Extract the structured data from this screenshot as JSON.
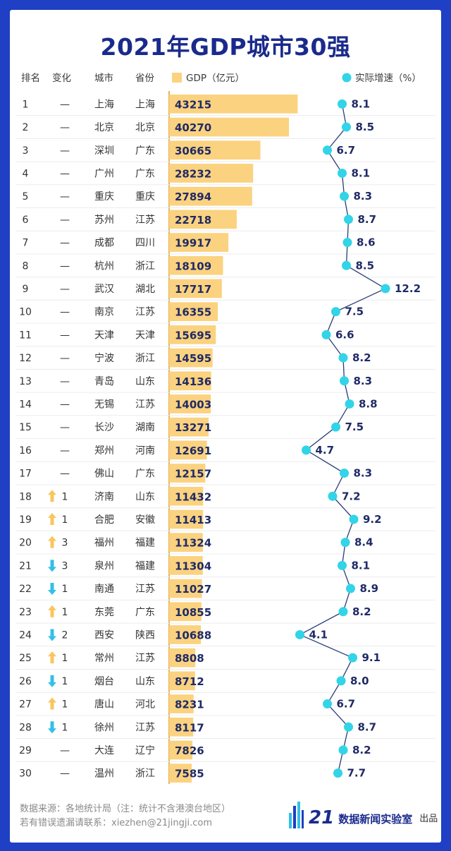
{
  "title": "2021年GDP城市30强",
  "headers": {
    "rank": "排名",
    "change": "变化",
    "city": "城市",
    "province": "省份",
    "gdp": "GDP（亿元）",
    "growth": "实际增速（%）"
  },
  "colors": {
    "background": "#1f3fc4",
    "bar": "#fbd27f",
    "dot": "#32d4e8",
    "up_arrow": "#f9c55d",
    "down_arrow": "#32c0e8",
    "title": "#1a2a8c"
  },
  "chart_data": {
    "type": "table",
    "gdp_unit": "亿元",
    "growth_unit": "%",
    "gdp_range": [
      0,
      45000
    ],
    "growth_range": [
      4,
      13
    ],
    "rows": [
      {
        "rank": "1",
        "change_dir": "same",
        "change": "—",
        "city": "上海",
        "province": "上海",
        "gdp": 43215,
        "growth": 8.1
      },
      {
        "rank": "2",
        "change_dir": "same",
        "change": "—",
        "city": "北京",
        "province": "北京",
        "gdp": 40270,
        "growth": 8.5
      },
      {
        "rank": "3",
        "change_dir": "same",
        "change": "—",
        "city": "深圳",
        "province": "广东",
        "gdp": 30665,
        "growth": 6.7
      },
      {
        "rank": "4",
        "change_dir": "same",
        "change": "—",
        "city": "广州",
        "province": "广东",
        "gdp": 28232,
        "growth": 8.1
      },
      {
        "rank": "5",
        "change_dir": "same",
        "change": "—",
        "city": "重庆",
        "province": "重庆",
        "gdp": 27894,
        "growth": 8.3
      },
      {
        "rank": "6",
        "change_dir": "same",
        "change": "—",
        "city": "苏州",
        "province": "江苏",
        "gdp": 22718,
        "growth": 8.7
      },
      {
        "rank": "7",
        "change_dir": "same",
        "change": "—",
        "city": "成都",
        "province": "四川",
        "gdp": 19917,
        "growth": 8.6
      },
      {
        "rank": "8",
        "change_dir": "same",
        "change": "—",
        "city": "杭州",
        "province": "浙江",
        "gdp": 18109,
        "growth": 8.5
      },
      {
        "rank": "9",
        "change_dir": "same",
        "change": "—",
        "city": "武汉",
        "province": "湖北",
        "gdp": 17717,
        "growth": 12.2
      },
      {
        "rank": "10",
        "change_dir": "same",
        "change": "—",
        "city": "南京",
        "province": "江苏",
        "gdp": 16355,
        "growth": 7.5
      },
      {
        "rank": "11",
        "change_dir": "same",
        "change": "—",
        "city": "天津",
        "province": "天津",
        "gdp": 15695,
        "growth": 6.6
      },
      {
        "rank": "12",
        "change_dir": "same",
        "change": "—",
        "city": "宁波",
        "province": "浙江",
        "gdp": 14595,
        "growth": 8.2
      },
      {
        "rank": "13",
        "change_dir": "same",
        "change": "—",
        "city": "青岛",
        "province": "山东",
        "gdp": 14136,
        "growth": 8.3
      },
      {
        "rank": "14",
        "change_dir": "same",
        "change": "—",
        "city": "无锡",
        "province": "江苏",
        "gdp": 14003,
        "growth": 8.8
      },
      {
        "rank": "15",
        "change_dir": "same",
        "change": "—",
        "city": "长沙",
        "province": "湖南",
        "gdp": 13271,
        "growth": 7.5
      },
      {
        "rank": "16",
        "change_dir": "same",
        "change": "—",
        "city": "郑州",
        "province": "河南",
        "gdp": 12691,
        "growth": 4.7
      },
      {
        "rank": "17",
        "change_dir": "same",
        "change": "—",
        "city": "佛山",
        "province": "广东",
        "gdp": 12157,
        "growth": 8.3
      },
      {
        "rank": "18",
        "change_dir": "up",
        "change": "1",
        "city": "济南",
        "province": "山东",
        "gdp": 11432,
        "growth": 7.2
      },
      {
        "rank": "19",
        "change_dir": "up",
        "change": "1",
        "city": "合肥",
        "province": "安徽",
        "gdp": 11413,
        "growth": 9.2
      },
      {
        "rank": "20",
        "change_dir": "up",
        "change": "3",
        "city": "福州",
        "province": "福建",
        "gdp": 11324,
        "growth": 8.4
      },
      {
        "rank": "21",
        "change_dir": "down",
        "change": "3",
        "city": "泉州",
        "province": "福建",
        "gdp": 11304,
        "growth": 8.1
      },
      {
        "rank": "22",
        "change_dir": "down",
        "change": "1",
        "city": "南通",
        "province": "江苏",
        "gdp": 11027,
        "growth": 8.9
      },
      {
        "rank": "23",
        "change_dir": "up",
        "change": "1",
        "city": "东莞",
        "province": "广东",
        "gdp": 10855,
        "growth": 8.2
      },
      {
        "rank": "24",
        "change_dir": "down",
        "change": "2",
        "city": "西安",
        "province": "陕西",
        "gdp": 10688,
        "growth": 4.1
      },
      {
        "rank": "25",
        "change_dir": "up",
        "change": "1",
        "city": "常州",
        "province": "江苏",
        "gdp": 8808,
        "growth": 9.1
      },
      {
        "rank": "26",
        "change_dir": "down",
        "change": "1",
        "city": "烟台",
        "province": "山东",
        "gdp": 8712,
        "growth": 8.0
      },
      {
        "rank": "27",
        "change_dir": "up",
        "change": "1",
        "city": "唐山",
        "province": "河北",
        "gdp": 8231,
        "growth": 6.7
      },
      {
        "rank": "28",
        "change_dir": "down",
        "change": "1",
        "city": "徐州",
        "province": "江苏",
        "gdp": 8117,
        "growth": 8.7
      },
      {
        "rank": "29",
        "change_dir": "same",
        "change": "—",
        "city": "大连",
        "province": "辽宁",
        "gdp": 7826,
        "growth": 8.2
      },
      {
        "rank": "30",
        "change_dir": "same",
        "change": "—",
        "city": "温州",
        "province": "浙江",
        "gdp": 7585,
        "growth": 7.7
      }
    ]
  },
  "footer": {
    "source": "数据来源：各地统计局（注：统计不含港澳台地区）",
    "contact": "若有错误遗漏请联系：xiezhen@21jingji.com",
    "brand_number": "21",
    "brand_name": "数据新闻实验室",
    "brand_suffix": "出品"
  }
}
